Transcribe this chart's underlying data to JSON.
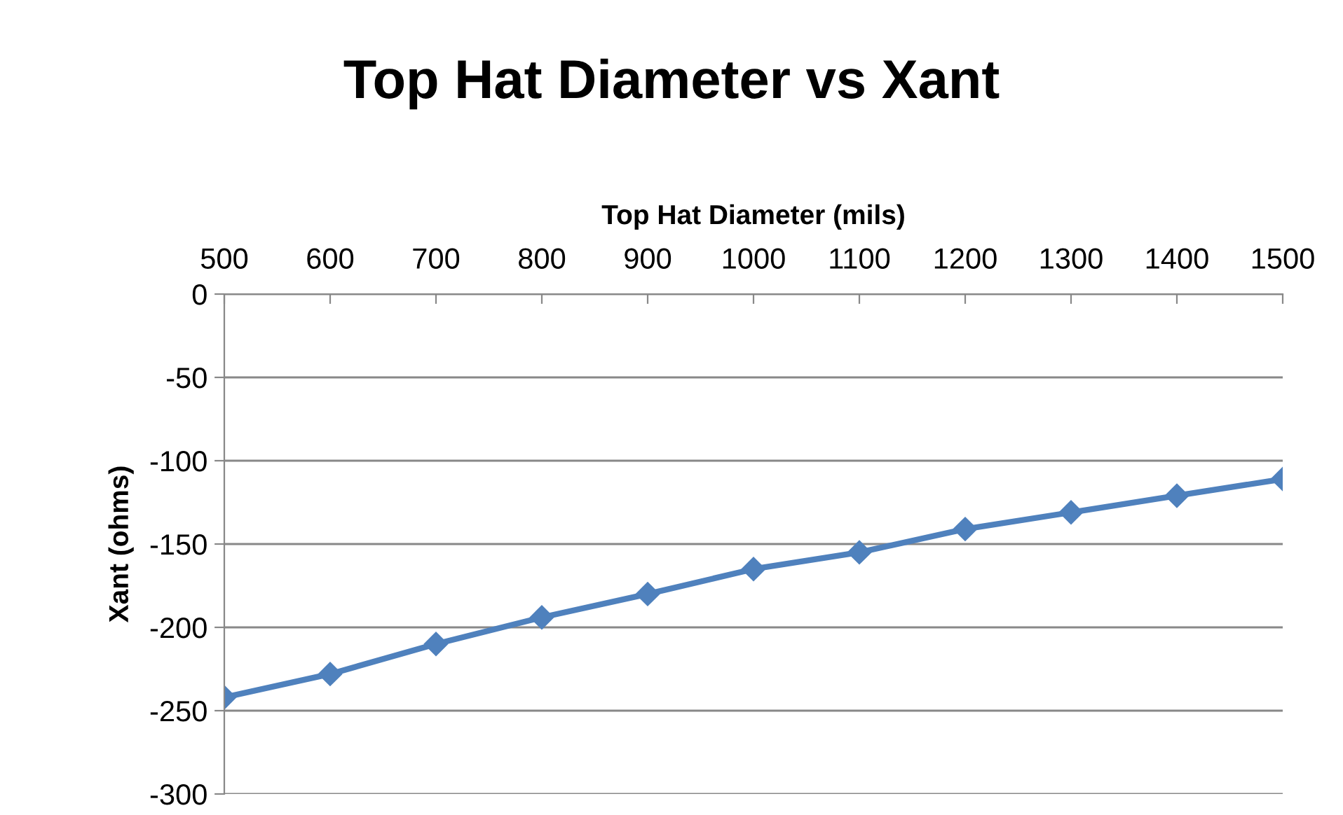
{
  "chart_data": {
    "type": "line",
    "title": "Top Hat Diameter vs Xant",
    "xlabel": "Top Hat Diameter (mils)",
    "ylabel": "Xant (ohms)",
    "x": [
      500,
      600,
      700,
      800,
      900,
      1000,
      1100,
      1200,
      1300,
      1400,
      1500
    ],
    "series": [
      {
        "color": "#4f81bd",
        "values": [
          -242,
          -228,
          -210,
          -194,
          -180,
          -165,
          -155,
          -141,
          -131,
          -121,
          -111
        ]
      }
    ],
    "xlim": [
      500,
      1500
    ],
    "xticks": [
      500,
      600,
      700,
      800,
      900,
      1000,
      1100,
      1200,
      1300,
      1400,
      1500
    ],
    "ylim": [
      -300,
      0
    ],
    "yticks": [
      -300,
      -250,
      -200,
      -150,
      -100,
      -50,
      0
    ],
    "grid": "y",
    "marker": "diamond",
    "line_style": "solid",
    "legend": false
  }
}
